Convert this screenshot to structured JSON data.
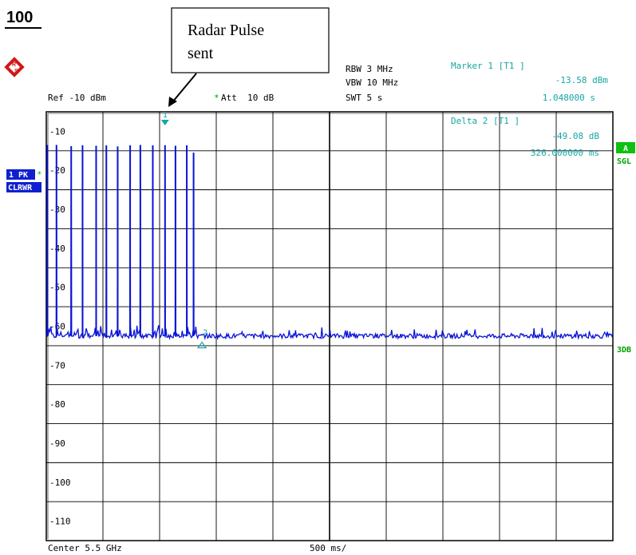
{
  "page_number": "100",
  "annotation": {
    "line1": "Radar Pulse",
    "line2": "sent"
  },
  "header": {
    "ref": "Ref -10 dBm",
    "att_star": "*",
    "att": "Att  10 dB",
    "rbw": "RBW 3 MHz",
    "vbw": "VBW 10 MHz",
    "swt": "SWT 5 s"
  },
  "marker1": {
    "title": "Marker 1 [T1 ]",
    "value": "-13.58 dBm",
    "time": "1.048000 s"
  },
  "delta2": {
    "title": "Delta 2 [T1 ]",
    "value": "-49.08 dB",
    "time": "326.000000 ms"
  },
  "side_labels": {
    "trace": "1 PK",
    "trace_star": "*",
    "mode": "CLRWR",
    "a": "A",
    "sgl": "SGL",
    "threedb": "3DB"
  },
  "footer": {
    "center": "Center 5.5 GHz",
    "span": "500 ms/"
  },
  "marker_labels": {
    "m1": "1",
    "m2": "2"
  },
  "colors": {
    "trace": "#0a14d6",
    "marker": "#16a5a5",
    "badge_blue": "#1020d0",
    "badge_green": "#10c010"
  },
  "chart_data": {
    "type": "line",
    "title": "",
    "xlabel": "",
    "ylabel": "",
    "x_unit": "ms",
    "xlim": [
      0,
      5000
    ],
    "ylim": [
      -115,
      -5
    ],
    "y_ticks": [
      -10,
      -20,
      -30,
      -40,
      -50,
      -60,
      -70,
      -80,
      -90,
      -100,
      -110
    ],
    "tick_labels": [
      "-10",
      "-20",
      "-30",
      "-40",
      "-50",
      "-60",
      "-70",
      "-80",
      "-90",
      "-100",
      "-110"
    ],
    "grid": true,
    "noise_floor_dbm": -62.5,
    "pulses": [
      {
        "x": 10,
        "y": -13.5
      },
      {
        "x": 90,
        "y": -13.5
      },
      {
        "x": 220,
        "y": -13.8
      },
      {
        "x": 320,
        "y": -13.6
      },
      {
        "x": 440,
        "y": -13.7
      },
      {
        "x": 530,
        "y": -13.6
      },
      {
        "x": 630,
        "y": -13.9
      },
      {
        "x": 740,
        "y": -13.6
      },
      {
        "x": 830,
        "y": -13.5
      },
      {
        "x": 940,
        "y": -13.6
      },
      {
        "x": 1048,
        "y": -13.58
      },
      {
        "x": 1140,
        "y": -13.7
      },
      {
        "x": 1240,
        "y": -13.6
      },
      {
        "x": 1300,
        "y": -15.5
      }
    ],
    "markers": [
      {
        "name": "1",
        "x": 1048,
        "y": -13.58
      },
      {
        "name": "2",
        "x": 1374,
        "y": -62.66
      }
    ]
  }
}
